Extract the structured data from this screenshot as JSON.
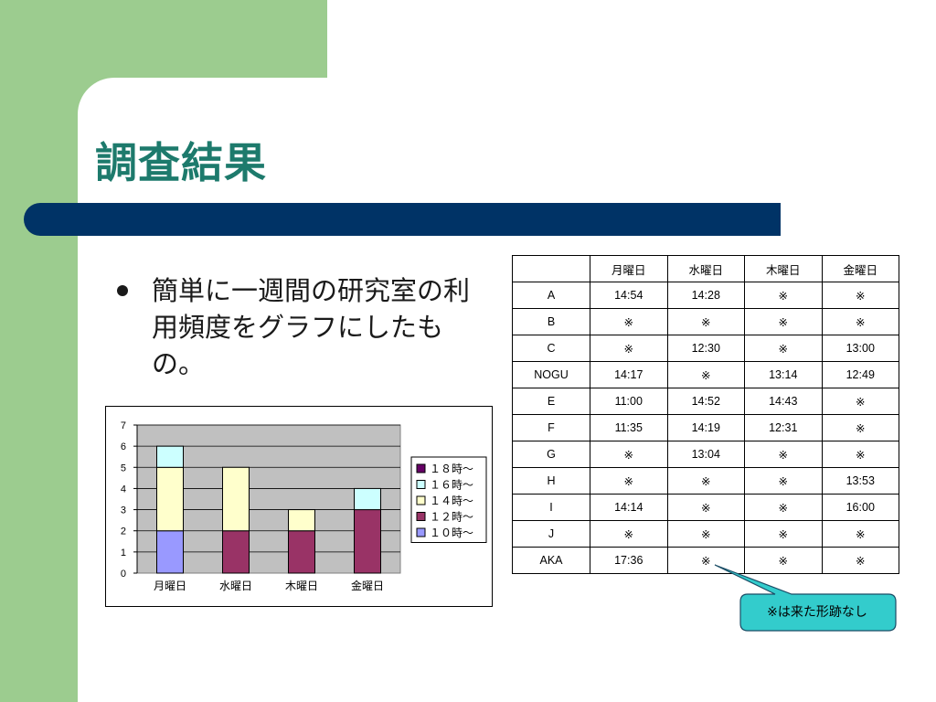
{
  "slide": {
    "title": "調査結果",
    "bullet": "簡単に一週間の研究室の利用頻度をグラフにしたもの。",
    "callout": "※は来た形跡なし"
  },
  "colors": {
    "background_green": "#9ccc8f",
    "title_teal": "#1d7a6c",
    "bar_navy": "#003366",
    "callout_fill": "#33cccc"
  },
  "table": {
    "headers": [
      "",
      "月曜日",
      "水曜日",
      "木曜日",
      "金曜日"
    ],
    "rows": [
      [
        "A",
        "14:54",
        "14:28",
        "※",
        "※"
      ],
      [
        "B",
        "※",
        "※",
        "※",
        "※"
      ],
      [
        "C",
        "※",
        "12:30",
        "※",
        "13:00"
      ],
      [
        "NOGU",
        "14:17",
        "※",
        "13:14",
        "12:49"
      ],
      [
        "E",
        "11:00",
        "14:52",
        "14:43",
        "※"
      ],
      [
        "F",
        "11:35",
        "14:19",
        "12:31",
        "※"
      ],
      [
        "G",
        "※",
        "13:04",
        "※",
        "※"
      ],
      [
        "H",
        "※",
        "※",
        "※",
        "13:53"
      ],
      [
        "I",
        "14:14",
        "※",
        "※",
        "16:00"
      ],
      [
        "J",
        "※",
        "※",
        "※",
        "※"
      ],
      [
        "AKA",
        "17:36",
        "※",
        "※",
        "※"
      ]
    ]
  },
  "chart_data": {
    "type": "bar",
    "stacked": true,
    "categories": [
      "月曜日",
      "水曜日",
      "木曜日",
      "金曜日"
    ],
    "series": [
      {
        "name": "１０時～",
        "color": "#9999ff",
        "values": [
          2,
          0,
          0,
          0
        ]
      },
      {
        "name": "１２時～",
        "color": "#993366",
        "values": [
          0,
          2,
          2,
          3
        ]
      },
      {
        "name": "１４時～",
        "color": "#ffffcc",
        "values": [
          3,
          3,
          1,
          0
        ]
      },
      {
        "name": "１６時～",
        "color": "#ccffff",
        "values": [
          1,
          0,
          0,
          1
        ]
      },
      {
        "name": "１８時～",
        "color": "#660066",
        "values": [
          0,
          0,
          0,
          0
        ]
      }
    ],
    "ylim": [
      0,
      7
    ],
    "yticks": [
      "0",
      "1",
      "2",
      "3",
      "4",
      "5",
      "6",
      "7"
    ],
    "plot_background": "#c0c0c0",
    "grid": true,
    "legend_position": "right",
    "legend_order": [
      "１８時～",
      "１６時～",
      "１４時～",
      "１２時～",
      "１０時～"
    ]
  }
}
